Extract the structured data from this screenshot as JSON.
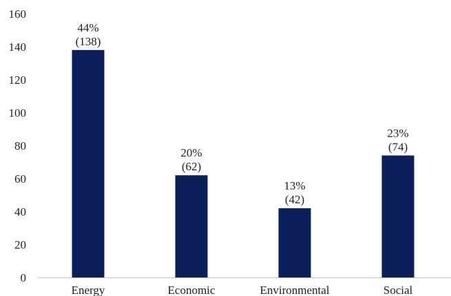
{
  "chart_data": {
    "type": "bar",
    "categories": [
      "Energy",
      "Economic",
      "Environmental",
      "Social"
    ],
    "values": [
      138,
      62,
      42,
      74
    ],
    "percent_labels": [
      "44%",
      "20%",
      "13%",
      "23%"
    ],
    "count_labels": [
      "(138)",
      "(62)",
      "(42)",
      "(74)"
    ],
    "ylim": [
      0,
      160
    ],
    "yticks": [
      0,
      20,
      40,
      60,
      80,
      100,
      120,
      140,
      160
    ],
    "grid": false,
    "bar_color": "#0b1f5c",
    "axis_color": "#bfbfbf"
  }
}
